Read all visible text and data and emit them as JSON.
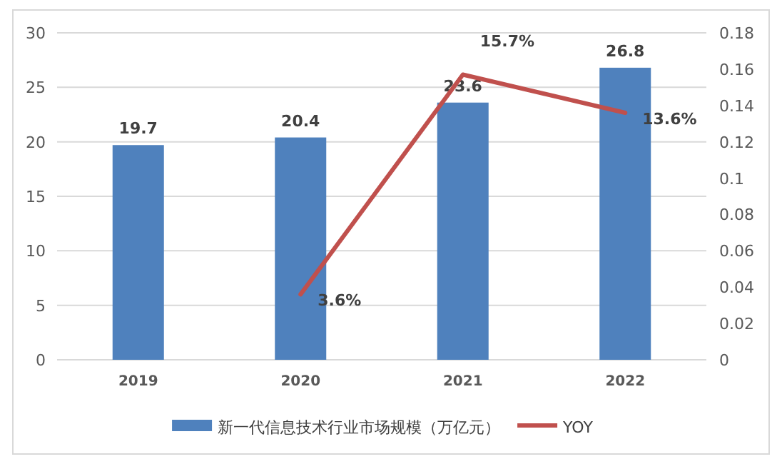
{
  "chart_data": {
    "type": "bar",
    "categories": [
      "2019",
      "2020",
      "2021",
      "2022"
    ],
    "series": [
      {
        "name": "新一代信息技术行业市场规模（万亿元）",
        "color": "#4f81bd",
        "values": [
          19.7,
          20.4,
          23.6,
          26.8
        ]
      },
      {
        "name": "YOY",
        "type": "line",
        "axis": "y2",
        "color": "#c0504d",
        "values": [
          null,
          0.036,
          0.157,
          0.136
        ],
        "value_labels": [
          null,
          "3.6%",
          "15.7%",
          "13.6%"
        ]
      }
    ],
    "data_labels": true,
    "ylim": [
      0,
      30
    ],
    "yticks": [
      0,
      5,
      10,
      15,
      20,
      25,
      30
    ],
    "y2lim": [
      0,
      0.18
    ],
    "y2ticks": [
      0,
      0.02,
      0.04,
      0.06,
      0.08,
      0.1,
      0.12,
      0.14,
      0.16,
      0.18
    ],
    "grid": "y",
    "legend": "bottom"
  }
}
